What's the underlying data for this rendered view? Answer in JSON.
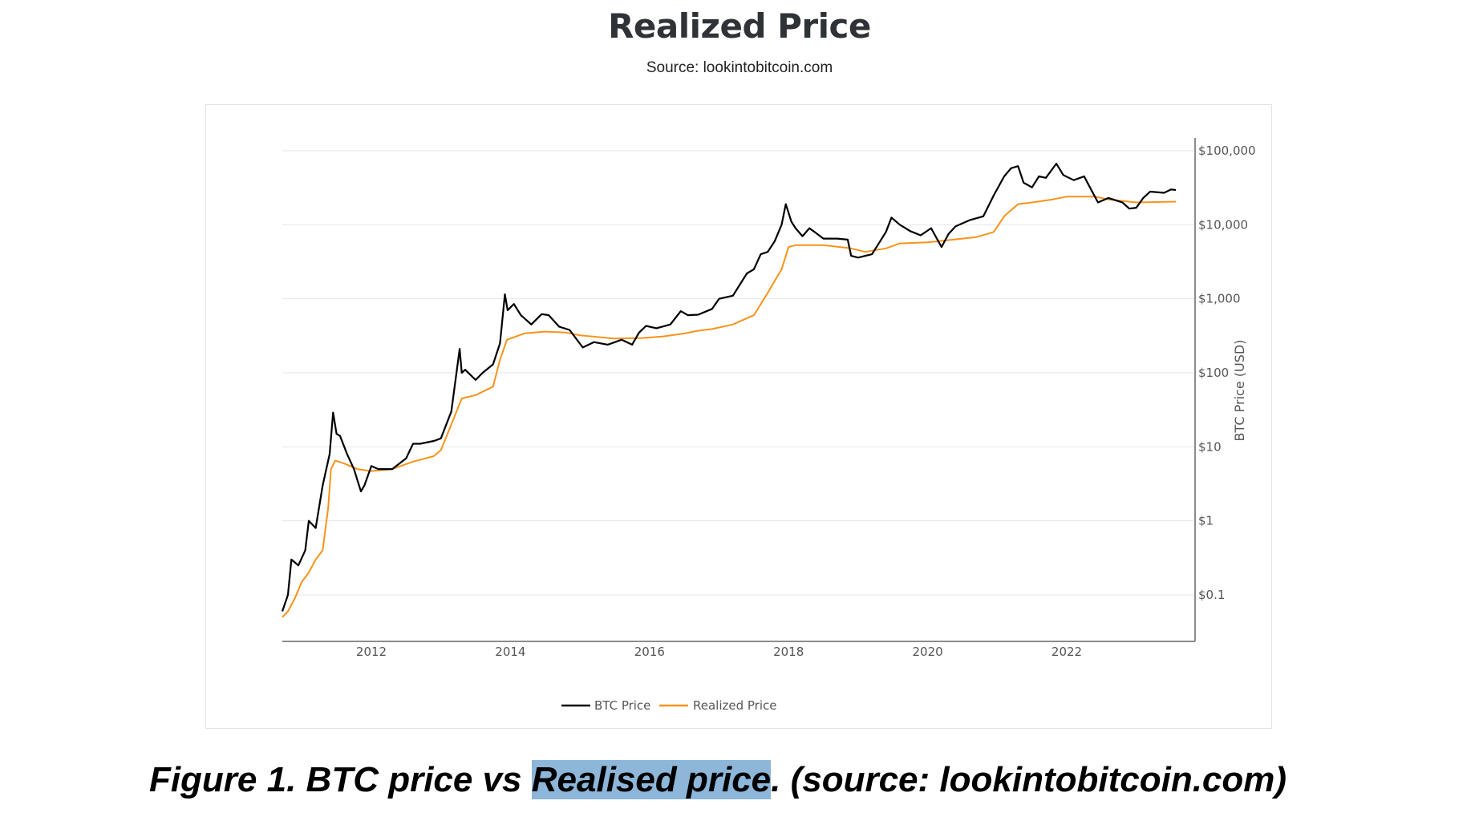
{
  "header": {
    "title": "Realized Price",
    "source": "Source: lookintobitcoin.com"
  },
  "caption": {
    "before": "Figure 1. BTC price vs ",
    "highlight": "Realised price",
    "after": ". (source: lookintobitcoin.com)"
  },
  "chart_data": {
    "type": "line",
    "title": "Realized Price",
    "ylabel": "BTC Price (USD)",
    "xlabel": "",
    "yscale": "log",
    "ylim": [
      0.03,
      150000
    ],
    "xlim": [
      2010.7,
      2024.2
    ],
    "grid": true,
    "legend_position": "bottom",
    "xticks": [
      {
        "v": 2012,
        "label": "2012"
      },
      {
        "v": 2014,
        "label": "2014"
      },
      {
        "v": 2016,
        "label": "2016"
      },
      {
        "v": 2018,
        "label": "2018"
      },
      {
        "v": 2020,
        "label": "2020"
      },
      {
        "v": 2022,
        "label": "2022"
      }
    ],
    "yticks": [
      {
        "v": 100000,
        "label": "$100,000"
      },
      {
        "v": 10000,
        "label": "$10,000"
      },
      {
        "v": 1000,
        "label": "$1,000"
      },
      {
        "v": 100,
        "label": "$100"
      },
      {
        "v": 10,
        "label": "$10"
      },
      {
        "v": 1,
        "label": "$1"
      },
      {
        "v": 0.1,
        "label": "$0.1"
      }
    ],
    "series": [
      {
        "name": "BTC Price",
        "color": "#000000",
        "x": [
          2010.72,
          2010.8,
          2010.85,
          2010.95,
          2011.05,
          2011.1,
          2011.2,
          2011.3,
          2011.4,
          2011.45,
          2011.5,
          2011.55,
          2011.65,
          2011.75,
          2011.85,
          2011.9,
          2012.0,
          2012.1,
          2012.3,
          2012.5,
          2012.6,
          2012.7,
          2012.9,
          2013.0,
          2013.15,
          2013.27,
          2013.3,
          2013.35,
          2013.5,
          2013.6,
          2013.75,
          2013.85,
          2013.92,
          2013.96,
          2014.05,
          2014.15,
          2014.3,
          2014.45,
          2014.55,
          2014.7,
          2014.85,
          2015.04,
          2015.2,
          2015.4,
          2015.6,
          2015.75,
          2015.85,
          2015.95,
          2016.1,
          2016.3,
          2016.45,
          2016.55,
          2016.7,
          2016.9,
          2017.0,
          2017.2,
          2017.4,
          2017.5,
          2017.6,
          2017.7,
          2017.8,
          2017.9,
          2017.96,
          2018.04,
          2018.1,
          2018.2,
          2018.3,
          2018.5,
          2018.7,
          2018.85,
          2018.9,
          2019.0,
          2019.2,
          2019.4,
          2019.48,
          2019.6,
          2019.75,
          2019.9,
          2020.05,
          2020.2,
          2020.3,
          2020.4,
          2020.6,
          2020.8,
          2020.95,
          2021.1,
          2021.2,
          2021.3,
          2021.38,
          2021.5,
          2021.6,
          2021.7,
          2021.85,
          2021.95,
          2022.1,
          2022.25,
          2022.35,
          2022.45,
          2022.6,
          2022.8,
          2022.9,
          2023.0,
          2023.1,
          2023.2,
          2023.4,
          2023.5,
          2023.57
        ],
        "y": [
          0.06,
          0.1,
          0.3,
          0.25,
          0.4,
          1.0,
          0.8,
          3,
          8,
          29,
          15,
          14,
          8,
          5,
          2.5,
          3,
          5.5,
          5,
          5,
          7,
          11,
          11,
          12,
          13,
          30,
          210,
          100,
          110,
          80,
          100,
          130,
          250,
          1150,
          700,
          850,
          600,
          450,
          620,
          600,
          420,
          380,
          220,
          260,
          240,
          280,
          240,
          350,
          430,
          400,
          450,
          680,
          600,
          610,
          730,
          1000,
          1100,
          2200,
          2500,
          4000,
          4300,
          6000,
          10000,
          19000,
          11000,
          9000,
          7000,
          9000,
          6500,
          6500,
          6300,
          3800,
          3600,
          4000,
          8000,
          12500,
          10000,
          8200,
          7200,
          9000,
          5000,
          7500,
          9500,
          11500,
          13000,
          25000,
          45000,
          58000,
          62000,
          37000,
          32000,
          45000,
          43000,
          67000,
          47000,
          40000,
          45000,
          30000,
          20000,
          23000,
          20000,
          16500,
          17000,
          23000,
          28000,
          27000,
          30000,
          29500
        ]
      },
      {
        "name": "Realized Price",
        "color": "#f7931a",
        "x": [
          2010.72,
          2010.8,
          2010.9,
          2011.0,
          2011.1,
          2011.2,
          2011.3,
          2011.38,
          2011.42,
          2011.48,
          2011.6,
          2011.8,
          2012.0,
          2012.3,
          2012.6,
          2012.9,
          2013.0,
          2013.15,
          2013.3,
          2013.5,
          2013.75,
          2013.85,
          2013.95,
          2014.2,
          2014.5,
          2014.8,
          2015.0,
          2015.5,
          2015.9,
          2016.2,
          2016.5,
          2016.7,
          2016.9,
          2017.2,
          2017.5,
          2017.7,
          2017.9,
          2018.0,
          2018.1,
          2018.5,
          2018.9,
          2019.1,
          2019.4,
          2019.6,
          2020.0,
          2020.3,
          2020.7,
          2020.95,
          2021.1,
          2021.3,
          2021.5,
          2021.8,
          2022.0,
          2022.4,
          2022.6,
          2023.0,
          2023.57
        ],
        "y": [
          0.05,
          0.06,
          0.09,
          0.15,
          0.2,
          0.3,
          0.4,
          1.5,
          5,
          6.5,
          6,
          5,
          4.7,
          5,
          6.3,
          7.5,
          9,
          20,
          45,
          50,
          65,
          150,
          280,
          340,
          360,
          350,
          320,
          290,
          295,
          310,
          340,
          370,
          390,
          450,
          600,
          1200,
          2500,
          5000,
          5300,
          5300,
          4800,
          4300,
          4800,
          5600,
          5800,
          6200,
          6800,
          8000,
          13000,
          19000,
          20000,
          22000,
          24000,
          24000,
          22000,
          20000,
          20500
        ]
      }
    ]
  }
}
